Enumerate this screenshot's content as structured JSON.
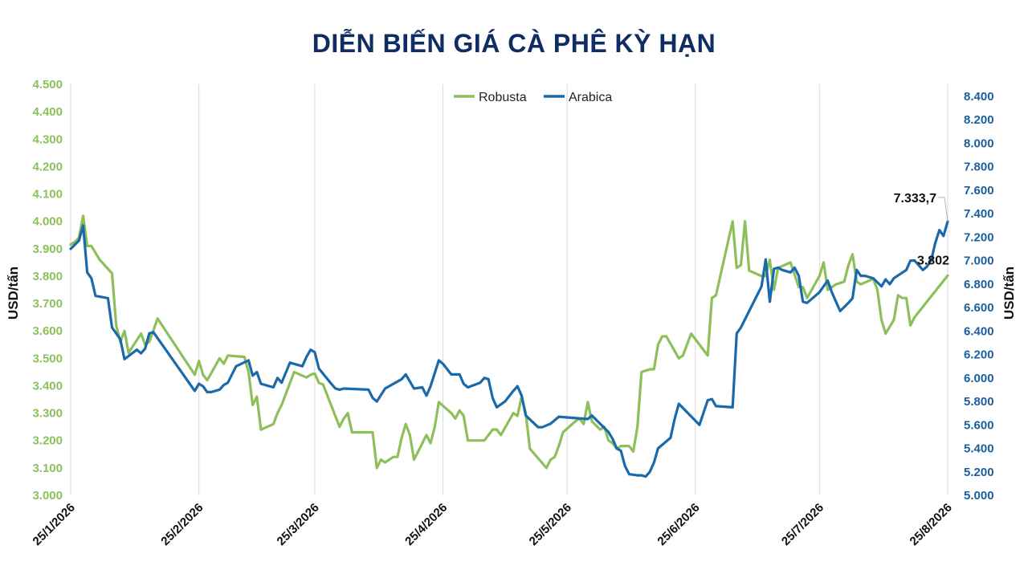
{
  "chart_data": {
    "type": "line",
    "title": "DIỄN BIẾN GIÁ CÀ PHÊ KỲ HẠN",
    "ylabel_left": "USD/tấn",
    "ylabel_right": "USD/tấn",
    "ylim_left": [
      3000,
      4500
    ],
    "ylim_right": [
      5000,
      8400
    ],
    "yticks_left": [
      "3.000",
      "3.100",
      "3.200",
      "3.300",
      "3.400",
      "3.500",
      "3.600",
      "3.700",
      "3.800",
      "3.900",
      "4.000",
      "4.100",
      "4.200",
      "4.300",
      "4.400",
      "4.500"
    ],
    "yticks_right": [
      "5.000",
      "5.200",
      "5.400",
      "5.600",
      "5.800",
      "6.000",
      "6.200",
      "6.400",
      "6.600",
      "6.800",
      "7.000",
      "7.200",
      "7.400",
      "7.600",
      "7.800",
      "8.000",
      "8.200",
      "8.400"
    ],
    "x_range": [
      "2026-01-25",
      "2026-08-25"
    ],
    "xticks": [
      "25/1/2026",
      "25/2/2026",
      "25/3/2026",
      "25/4/2026",
      "25/5/2026",
      "25/6/2026",
      "25/7/2026",
      "25/8/2026"
    ],
    "grid": "vertical",
    "legend_position": "top-center",
    "colors": {
      "robusta": "#8dc05a",
      "arabica": "#1a6aab"
    },
    "series": [
      {
        "name": "Robusta",
        "axis": "left",
        "points": [
          [
            "2026-01-25",
            3915
          ],
          [
            "2026-01-26",
            3925
          ],
          [
            "2026-01-27",
            3940
          ],
          [
            "2026-01-28",
            4020
          ],
          [
            "2026-01-29",
            3910
          ],
          [
            "2026-01-30",
            3910
          ],
          [
            "2026-02-01",
            3860
          ],
          [
            "2026-02-04",
            3810
          ],
          [
            "2026-02-05",
            3620
          ],
          [
            "2026-02-06",
            3560
          ],
          [
            "2026-02-07",
            3600
          ],
          [
            "2026-02-08",
            3520
          ],
          [
            "2026-02-11",
            3590
          ],
          [
            "2026-02-12",
            3550
          ],
          [
            "2026-02-13",
            3560
          ],
          [
            "2026-02-15",
            3645
          ],
          [
            "2026-02-24",
            3440
          ],
          [
            "2026-02-25",
            3490
          ],
          [
            "2026-02-26",
            3440
          ],
          [
            "2026-02-27",
            3420
          ],
          [
            "2026-03-02",
            3500
          ],
          [
            "2026-03-03",
            3480
          ],
          [
            "2026-03-04",
            3510
          ],
          [
            "2026-03-08",
            3505
          ],
          [
            "2026-03-09",
            3450
          ],
          [
            "2026-03-10",
            3330
          ],
          [
            "2026-03-11",
            3360
          ],
          [
            "2026-03-12",
            3240
          ],
          [
            "2026-03-15",
            3260
          ],
          [
            "2026-03-16",
            3300
          ],
          [
            "2026-03-17",
            3330
          ],
          [
            "2026-03-20",
            3450
          ],
          [
            "2026-03-23",
            3430
          ],
          [
            "2026-03-24",
            3440
          ],
          [
            "2026-03-25",
            3445
          ],
          [
            "2026-03-26",
            3410
          ],
          [
            "2026-03-27",
            3405
          ],
          [
            "2026-03-31",
            3250
          ],
          [
            "2026-04-01",
            3280
          ],
          [
            "2026-04-02",
            3300
          ],
          [
            "2026-04-03",
            3230
          ],
          [
            "2026-04-08",
            3230
          ],
          [
            "2026-04-09",
            3100
          ],
          [
            "2026-04-10",
            3130
          ],
          [
            "2026-04-11",
            3120
          ],
          [
            "2026-04-13",
            3140
          ],
          [
            "2026-04-14",
            3140
          ],
          [
            "2026-04-15",
            3210
          ],
          [
            "2026-04-16",
            3260
          ],
          [
            "2026-04-17",
            3220
          ],
          [
            "2026-04-18",
            3130
          ],
          [
            "2026-04-21",
            3220
          ],
          [
            "2026-04-22",
            3190
          ],
          [
            "2026-04-23",
            3250
          ],
          [
            "2026-04-24",
            3340
          ],
          [
            "2026-04-27",
            3300
          ],
          [
            "2026-04-28",
            3280
          ],
          [
            "2026-04-29",
            3310
          ],
          [
            "2026-04-30",
            3290
          ],
          [
            "2026-05-01",
            3200
          ],
          [
            "2026-05-05",
            3200
          ],
          [
            "2026-05-07",
            3240
          ],
          [
            "2026-05-08",
            3240
          ],
          [
            "2026-05-09",
            3220
          ],
          [
            "2026-05-12",
            3300
          ],
          [
            "2026-05-13",
            3290
          ],
          [
            "2026-05-14",
            3360
          ],
          [
            "2026-05-15",
            3300
          ],
          [
            "2026-05-16",
            3170
          ],
          [
            "2026-05-20",
            3100
          ],
          [
            "2026-05-21",
            3130
          ],
          [
            "2026-05-22",
            3140
          ],
          [
            "2026-05-23",
            3180
          ],
          [
            "2026-05-24",
            3230
          ],
          [
            "2026-05-27",
            3270
          ],
          [
            "2026-05-28",
            3280
          ],
          [
            "2026-05-29",
            3260
          ],
          [
            "2026-05-30",
            3340
          ],
          [
            "2026-05-31",
            3270
          ],
          [
            "2026-06-02",
            3240
          ],
          [
            "2026-06-03",
            3250
          ],
          [
            "2026-06-04",
            3200
          ],
          [
            "2026-06-05",
            3190
          ],
          [
            "2026-06-06",
            3170
          ],
          [
            "2026-06-07",
            3180
          ],
          [
            "2026-06-09",
            3180
          ],
          [
            "2026-06-10",
            3160
          ],
          [
            "2026-06-11",
            3250
          ],
          [
            "2026-06-12",
            3450
          ],
          [
            "2026-06-14",
            3460
          ],
          [
            "2026-06-15",
            3460
          ],
          [
            "2026-06-16",
            3550
          ],
          [
            "2026-06-17",
            3580
          ],
          [
            "2026-06-18",
            3580
          ],
          [
            "2026-06-21",
            3500
          ],
          [
            "2026-06-22",
            3510
          ],
          [
            "2026-06-24",
            3590
          ],
          [
            "2026-06-28",
            3510
          ],
          [
            "2026-06-29",
            3720
          ],
          [
            "2026-06-30",
            3730
          ],
          [
            "2026-07-04",
            4000
          ],
          [
            "2026-07-05",
            3830
          ],
          [
            "2026-07-06",
            3840
          ],
          [
            "2026-07-07",
            4000
          ],
          [
            "2026-07-08",
            3820
          ],
          [
            "2026-07-11",
            3800
          ],
          [
            "2026-07-12",
            3800
          ],
          [
            "2026-07-13",
            3860
          ],
          [
            "2026-07-14",
            3750
          ],
          [
            "2026-07-15",
            3830
          ],
          [
            "2026-07-18",
            3850
          ],
          [
            "2026-07-20",
            3760
          ],
          [
            "2026-07-21",
            3760
          ],
          [
            "2026-07-22",
            3720
          ],
          [
            "2026-07-25",
            3800
          ],
          [
            "2026-07-26",
            3850
          ],
          [
            "2026-07-27",
            3750
          ],
          [
            "2026-07-28",
            3760
          ],
          [
            "2026-07-29",
            3770
          ],
          [
            "2026-07-31",
            3780
          ],
          [
            "2026-08-01",
            3840
          ],
          [
            "2026-08-02",
            3880
          ],
          [
            "2026-08-03",
            3780
          ],
          [
            "2026-08-04",
            3770
          ],
          [
            "2026-08-07",
            3790
          ],
          [
            "2026-08-08",
            3750
          ],
          [
            "2026-08-09",
            3640
          ],
          [
            "2026-08-10",
            3590
          ],
          [
            "2026-08-12",
            3640
          ],
          [
            "2026-08-13",
            3730
          ],
          [
            "2026-08-14",
            3720
          ],
          [
            "2026-08-15",
            3720
          ],
          [
            "2026-08-16",
            3620
          ],
          [
            "2026-08-17",
            3650
          ],
          [
            "2026-08-25",
            3802
          ]
        ]
      },
      {
        "name": "Arabica",
        "axis": "right",
        "points": [
          [
            "2026-01-25",
            7100
          ],
          [
            "2026-01-27",
            7170
          ],
          [
            "2026-01-28",
            7300
          ],
          [
            "2026-01-29",
            6900
          ],
          [
            "2026-01-30",
            6850
          ],
          [
            "2026-01-31",
            6700
          ],
          [
            "2026-02-03",
            6680
          ],
          [
            "2026-02-04",
            6430
          ],
          [
            "2026-02-05",
            6380
          ],
          [
            "2026-02-06",
            6330
          ],
          [
            "2026-02-07",
            6160
          ],
          [
            "2026-02-10",
            6240
          ],
          [
            "2026-02-11",
            6210
          ],
          [
            "2026-02-12",
            6250
          ],
          [
            "2026-02-13",
            6380
          ],
          [
            "2026-02-14",
            6390
          ],
          [
            "2026-02-24",
            5890
          ],
          [
            "2026-02-25",
            5950
          ],
          [
            "2026-02-26",
            5930
          ],
          [
            "2026-02-27",
            5880
          ],
          [
            "2026-02-28",
            5880
          ],
          [
            "2026-03-02",
            5900
          ],
          [
            "2026-03-03",
            5940
          ],
          [
            "2026-03-04",
            5960
          ],
          [
            "2026-03-06",
            6100
          ],
          [
            "2026-03-09",
            6150
          ],
          [
            "2026-03-10",
            6020
          ],
          [
            "2026-03-11",
            6050
          ],
          [
            "2026-03-12",
            5950
          ],
          [
            "2026-03-15",
            5920
          ],
          [
            "2026-03-16",
            6000
          ],
          [
            "2026-03-17",
            5960
          ],
          [
            "2026-03-19",
            6130
          ],
          [
            "2026-03-22",
            6100
          ],
          [
            "2026-03-23",
            6180
          ],
          [
            "2026-03-24",
            6240
          ],
          [
            "2026-03-25",
            6220
          ],
          [
            "2026-03-26",
            6080
          ],
          [
            "2026-03-29",
            5950
          ],
          [
            "2026-03-30",
            5910
          ],
          [
            "2026-03-31",
            5900
          ],
          [
            "2026-04-01",
            5910
          ],
          [
            "2026-04-07",
            5900
          ],
          [
            "2026-04-08",
            5830
          ],
          [
            "2026-04-09",
            5800
          ],
          [
            "2026-04-11",
            5910
          ],
          [
            "2026-04-15",
            5990
          ],
          [
            "2026-04-16",
            6030
          ],
          [
            "2026-04-18",
            5910
          ],
          [
            "2026-04-20",
            5920
          ],
          [
            "2026-04-21",
            5850
          ],
          [
            "2026-04-22",
            5930
          ],
          [
            "2026-04-24",
            6150
          ],
          [
            "2026-04-25",
            6120
          ],
          [
            "2026-04-27",
            6030
          ],
          [
            "2026-04-29",
            6030
          ],
          [
            "2026-04-30",
            5950
          ],
          [
            "2026-05-01",
            5920
          ],
          [
            "2026-05-04",
            5960
          ],
          [
            "2026-05-05",
            6000
          ],
          [
            "2026-05-06",
            5990
          ],
          [
            "2026-05-07",
            5830
          ],
          [
            "2026-05-08",
            5750
          ],
          [
            "2026-05-10",
            5800
          ],
          [
            "2026-05-12",
            5890
          ],
          [
            "2026-05-13",
            5930
          ],
          [
            "2026-05-14",
            5850
          ],
          [
            "2026-05-15",
            5680
          ],
          [
            "2026-05-18",
            5580
          ],
          [
            "2026-05-19",
            5580
          ],
          [
            "2026-05-21",
            5610
          ],
          [
            "2026-05-23",
            5670
          ],
          [
            "2026-05-30",
            5650
          ],
          [
            "2026-05-31",
            5680
          ],
          [
            "2026-06-04",
            5540
          ],
          [
            "2026-06-05",
            5480
          ],
          [
            "2026-06-06",
            5400
          ],
          [
            "2026-06-07",
            5380
          ],
          [
            "2026-06-08",
            5250
          ],
          [
            "2026-06-09",
            5180
          ],
          [
            "2026-06-11",
            5170
          ],
          [
            "2026-06-12",
            5170
          ],
          [
            "2026-06-13",
            5160
          ],
          [
            "2026-06-14",
            5200
          ],
          [
            "2026-06-15",
            5280
          ],
          [
            "2026-06-16",
            5400
          ],
          [
            "2026-06-19",
            5490
          ],
          [
            "2026-06-20",
            5650
          ],
          [
            "2026-06-21",
            5780
          ],
          [
            "2026-06-26",
            5600
          ],
          [
            "2026-06-28",
            5810
          ],
          [
            "2026-06-29",
            5820
          ],
          [
            "2026-06-30",
            5760
          ],
          [
            "2026-07-04",
            5750
          ],
          [
            "2026-07-05",
            6380
          ],
          [
            "2026-07-06",
            6430
          ],
          [
            "2026-07-11",
            6780
          ],
          [
            "2026-07-12",
            7010
          ],
          [
            "2026-07-13",
            6650
          ],
          [
            "2026-07-14",
            6930
          ],
          [
            "2026-07-15",
            6940
          ],
          [
            "2026-07-16",
            6920
          ],
          [
            "2026-07-18",
            6900
          ],
          [
            "2026-07-19",
            6940
          ],
          [
            "2026-07-20",
            6870
          ],
          [
            "2026-07-21",
            6650
          ],
          [
            "2026-07-22",
            6640
          ],
          [
            "2026-07-25",
            6730
          ],
          [
            "2026-07-27",
            6830
          ],
          [
            "2026-07-28",
            6730
          ],
          [
            "2026-07-29",
            6650
          ],
          [
            "2026-07-30",
            6570
          ],
          [
            "2026-08-01",
            6640
          ],
          [
            "2026-08-02",
            6680
          ],
          [
            "2026-08-03",
            6920
          ],
          [
            "2026-08-04",
            6870
          ],
          [
            "2026-08-05",
            6870
          ],
          [
            "2026-08-07",
            6850
          ],
          [
            "2026-08-09",
            6780
          ],
          [
            "2026-08-10",
            6840
          ],
          [
            "2026-08-11",
            6800
          ],
          [
            "2026-08-12",
            6850
          ],
          [
            "2026-08-15",
            6920
          ],
          [
            "2026-08-16",
            7000
          ],
          [
            "2026-08-17",
            7000
          ],
          [
            "2026-08-19",
            6920
          ],
          [
            "2026-08-20",
            6950
          ],
          [
            "2026-08-21",
            7000
          ],
          [
            "2026-08-22",
            7150
          ],
          [
            "2026-08-23",
            7260
          ],
          [
            "2026-08-24",
            7210
          ],
          [
            "2026-08-25",
            7333.7
          ]
        ]
      }
    ],
    "annotations": [
      {
        "series": "Arabica",
        "x": "2026-08-25",
        "label": "7.333,7"
      },
      {
        "series": "Robusta",
        "x": "2026-08-25",
        "label": "3.802"
      }
    ]
  }
}
